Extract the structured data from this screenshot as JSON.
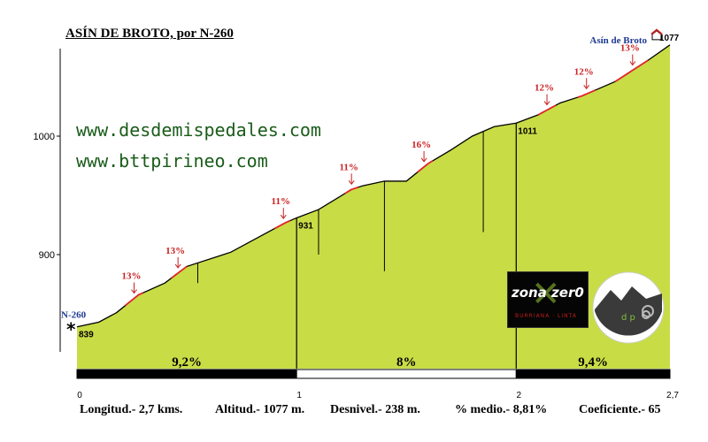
{
  "title": "ASÍN DE BROTO, por N-260",
  "websites": [
    "www.desdemispedales.com",
    "www.bttpirineo.com"
  ],
  "footer": {
    "longitud": "Longitud.- 2,7 kms.",
    "altitud": "Altitud.- 1077 m.",
    "desnivel": "Desnivel.- 238 m.",
    "medio": "% medio.- 8,81%",
    "coeficiente": "Coeficiente.- 65"
  },
  "logos": {
    "zonazero_text": "zona zer0",
    "zonazero_sub": "BURRIANA · LINTA",
    "dp_text": "d p"
  },
  "colors": {
    "fill": "#c8dc46",
    "profile": "#000000",
    "steep": "#e0262b",
    "place": "#1f3a93",
    "grade": "#cc1f1f"
  },
  "chart_data": {
    "type": "area",
    "xlim": [
      0,
      2.7
    ],
    "ylim": [
      800,
      1077
    ],
    "y_ticks": [
      900,
      1000
    ],
    "y_tick_labels": [
      "900",
      "1000"
    ],
    "x_ticks": [
      0,
      1,
      2,
      2.7
    ],
    "x_tick_labels": [
      "0",
      "1",
      "2",
      "2,7"
    ],
    "profile": [
      [
        0.0,
        839
      ],
      [
        0.1,
        843
      ],
      [
        0.18,
        851
      ],
      [
        0.28,
        866
      ],
      [
        0.4,
        876
      ],
      [
        0.5,
        890
      ],
      [
        0.7,
        902
      ],
      [
        0.85,
        917
      ],
      [
        0.95,
        927
      ],
      [
        1.0,
        931
      ],
      [
        1.1,
        938
      ],
      [
        1.25,
        955
      ],
      [
        1.3,
        958
      ],
      [
        1.4,
        962
      ],
      [
        1.5,
        962
      ],
      [
        1.6,
        977
      ],
      [
        1.7,
        988
      ],
      [
        1.8,
        1000
      ],
      [
        1.9,
        1008
      ],
      [
        2.0,
        1011
      ],
      [
        2.1,
        1018
      ],
      [
        2.2,
        1028
      ],
      [
        2.3,
        1034
      ],
      [
        2.45,
        1046
      ],
      [
        2.6,
        1064
      ],
      [
        2.7,
        1077
      ]
    ],
    "steep_segments": [
      [
        0.22,
        0.3
      ],
      [
        0.43,
        0.5
      ],
      [
        0.9,
        0.97
      ],
      [
        1.22,
        1.28
      ],
      [
        1.55,
        1.62
      ],
      [
        2.1,
        2.18
      ],
      [
        2.28,
        2.36
      ],
      [
        2.45,
        2.6
      ]
    ],
    "grade_labels": [
      {
        "x": 0.26,
        "text": "13%"
      },
      {
        "x": 0.46,
        "text": "13%"
      },
      {
        "x": 0.94,
        "text": "11%"
      },
      {
        "x": 1.25,
        "text": "11%"
      },
      {
        "x": 1.58,
        "text": "16%"
      },
      {
        "x": 2.14,
        "text": "12%"
      },
      {
        "x": 2.32,
        "text": "12%"
      },
      {
        "x": 2.53,
        "text": "13%"
      }
    ],
    "markers": [
      {
        "x": 0.55,
        "y_low": 876
      },
      {
        "x": 1.1,
        "y_low": 900
      },
      {
        "x": 1.4,
        "y_low": 886
      },
      {
        "x": 1.85,
        "y_low": 919
      }
    ],
    "km_lines": [
      1.0,
      2.0
    ],
    "elevation_labels": [
      {
        "x": 0.0,
        "text": "839"
      },
      {
        "x": 1.0,
        "text": "931"
      },
      {
        "x": 2.0,
        "text": "1011"
      },
      {
        "x": 2.7,
        "text": "1077"
      }
    ],
    "places": [
      {
        "x": 0.0,
        "text": "N-260"
      },
      {
        "x": 2.7,
        "text": "Asín de Broto"
      }
    ],
    "start_symbol": "*",
    "segments": [
      {
        "from": 0,
        "to": 1,
        "grade": "9,2%"
      },
      {
        "from": 1,
        "to": 2,
        "grade": "8%"
      },
      {
        "from": 2,
        "to": 2.7,
        "grade": "9,4%"
      }
    ]
  }
}
